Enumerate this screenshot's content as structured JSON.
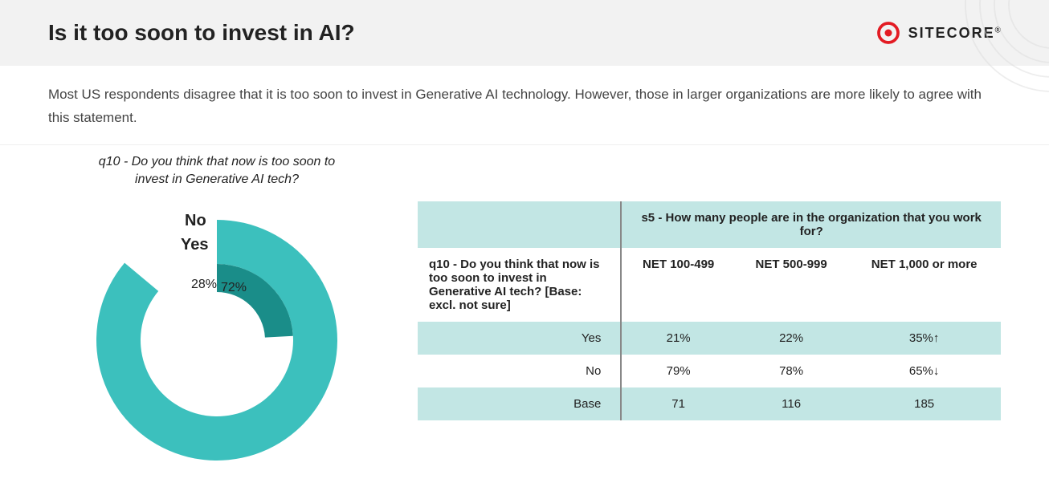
{
  "header": {
    "title": "Is it too soon to invest in AI?",
    "brand": "SITECORE",
    "brand_color": "#e31b23",
    "bg": "#f2f2f2"
  },
  "subtitle": "Most US respondents disagree that it is too soon to invest in Generative AI technology. However, those in larger organizations are more likely to agree with this statement.",
  "donut": {
    "caption": "q10 - Do you think that now is too soon to invest in Generative AI tech?",
    "type": "donut",
    "series": [
      {
        "label": "No",
        "value": 72,
        "color": "#3cc0bd"
      },
      {
        "label": "Yes",
        "value": 28,
        "color": "#1a8d89"
      }
    ],
    "label_no_text": "No",
    "label_yes_text": "Yes",
    "pct_yes_text": "28%",
    "pct_no_text": "72%",
    "start_angle_deg": -90,
    "gap_deg": 50,
    "outer_r": 150,
    "no_inner_r": 95,
    "yes_inner_r": 60,
    "label_fontsize": 20,
    "pct_fontsize": 16,
    "background": "#ffffff"
  },
  "table": {
    "span_header": "s5 - How many people are in the organization that you work for?",
    "row_question": "q10 - Do you think that now is too soon to invest in Generative AI tech? [Base: excl. not sure]",
    "col_headers": [
      "NET 100-499",
      "NET 500-999",
      "NET 1,000 or more"
    ],
    "rows": [
      {
        "label": "Yes",
        "cells": [
          "21%",
          "22%",
          "35%↑"
        ],
        "shade": true
      },
      {
        "label": "No",
        "cells": [
          "79%",
          "78%",
          "65%↓"
        ],
        "shade": false
      },
      {
        "label": "Base",
        "cells": [
          "71",
          "116",
          "185"
        ],
        "shade": true
      }
    ],
    "header_bg": "#c2e6e4",
    "shade_bg": "#c2e6e4",
    "divider_color": "#888888",
    "font_size": 15
  }
}
